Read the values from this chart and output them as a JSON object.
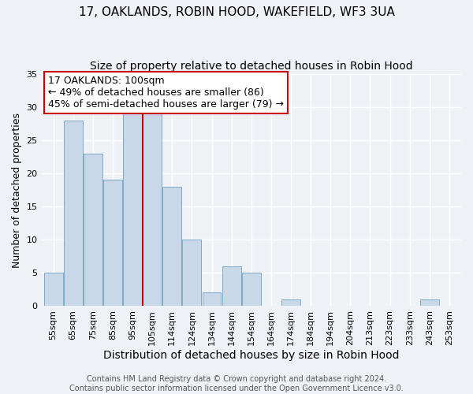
{
  "title": "17, OAKLANDS, ROBIN HOOD, WAKEFIELD, WF3 3UA",
  "subtitle": "Size of property relative to detached houses in Robin Hood",
  "xlabel": "Distribution of detached houses by size in Robin Hood",
  "ylabel": "Number of detached properties",
  "bar_labels": [
    "55sqm",
    "65sqm",
    "75sqm",
    "85sqm",
    "95sqm",
    "105sqm",
    "114sqm",
    "124sqm",
    "134sqm",
    "144sqm",
    "154sqm",
    "164sqm",
    "174sqm",
    "184sqm",
    "194sqm",
    "204sqm",
    "213sqm",
    "223sqm",
    "233sqm",
    "243sqm",
    "253sqm"
  ],
  "bar_values": [
    5,
    28,
    23,
    19,
    29,
    29,
    18,
    10,
    2,
    6,
    5,
    0,
    1,
    0,
    0,
    0,
    0,
    0,
    0,
    1,
    0
  ],
  "bar_color": "#c8d8e8",
  "bar_edgecolor": "#7daac8",
  "vline_color": "#cc0000",
  "vline_bar_index": 5,
  "ylim": [
    0,
    35
  ],
  "yticks": [
    0,
    5,
    10,
    15,
    20,
    25,
    30,
    35
  ],
  "annotation_title": "17 OAKLANDS: 100sqm",
  "annotation_line1": "← 49% of detached houses are smaller (86)",
  "annotation_line2": "45% of semi-detached houses are larger (79) →",
  "annotation_box_color": "#ffffff",
  "annotation_border_color": "#cc0000",
  "footer1": "Contains HM Land Registry data © Crown copyright and database right 2024.",
  "footer2": "Contains public sector information licensed under the Open Government Licence v3.0.",
  "background_color": "#eef2f7",
  "plot_bg_color": "#eef2f7",
  "grid_color": "#ffffff",
  "title_fontsize": 11,
  "subtitle_fontsize": 10,
  "xlabel_fontsize": 10,
  "ylabel_fontsize": 9,
  "tick_fontsize": 8,
  "annotation_fontsize": 9,
  "footer_fontsize": 7
}
